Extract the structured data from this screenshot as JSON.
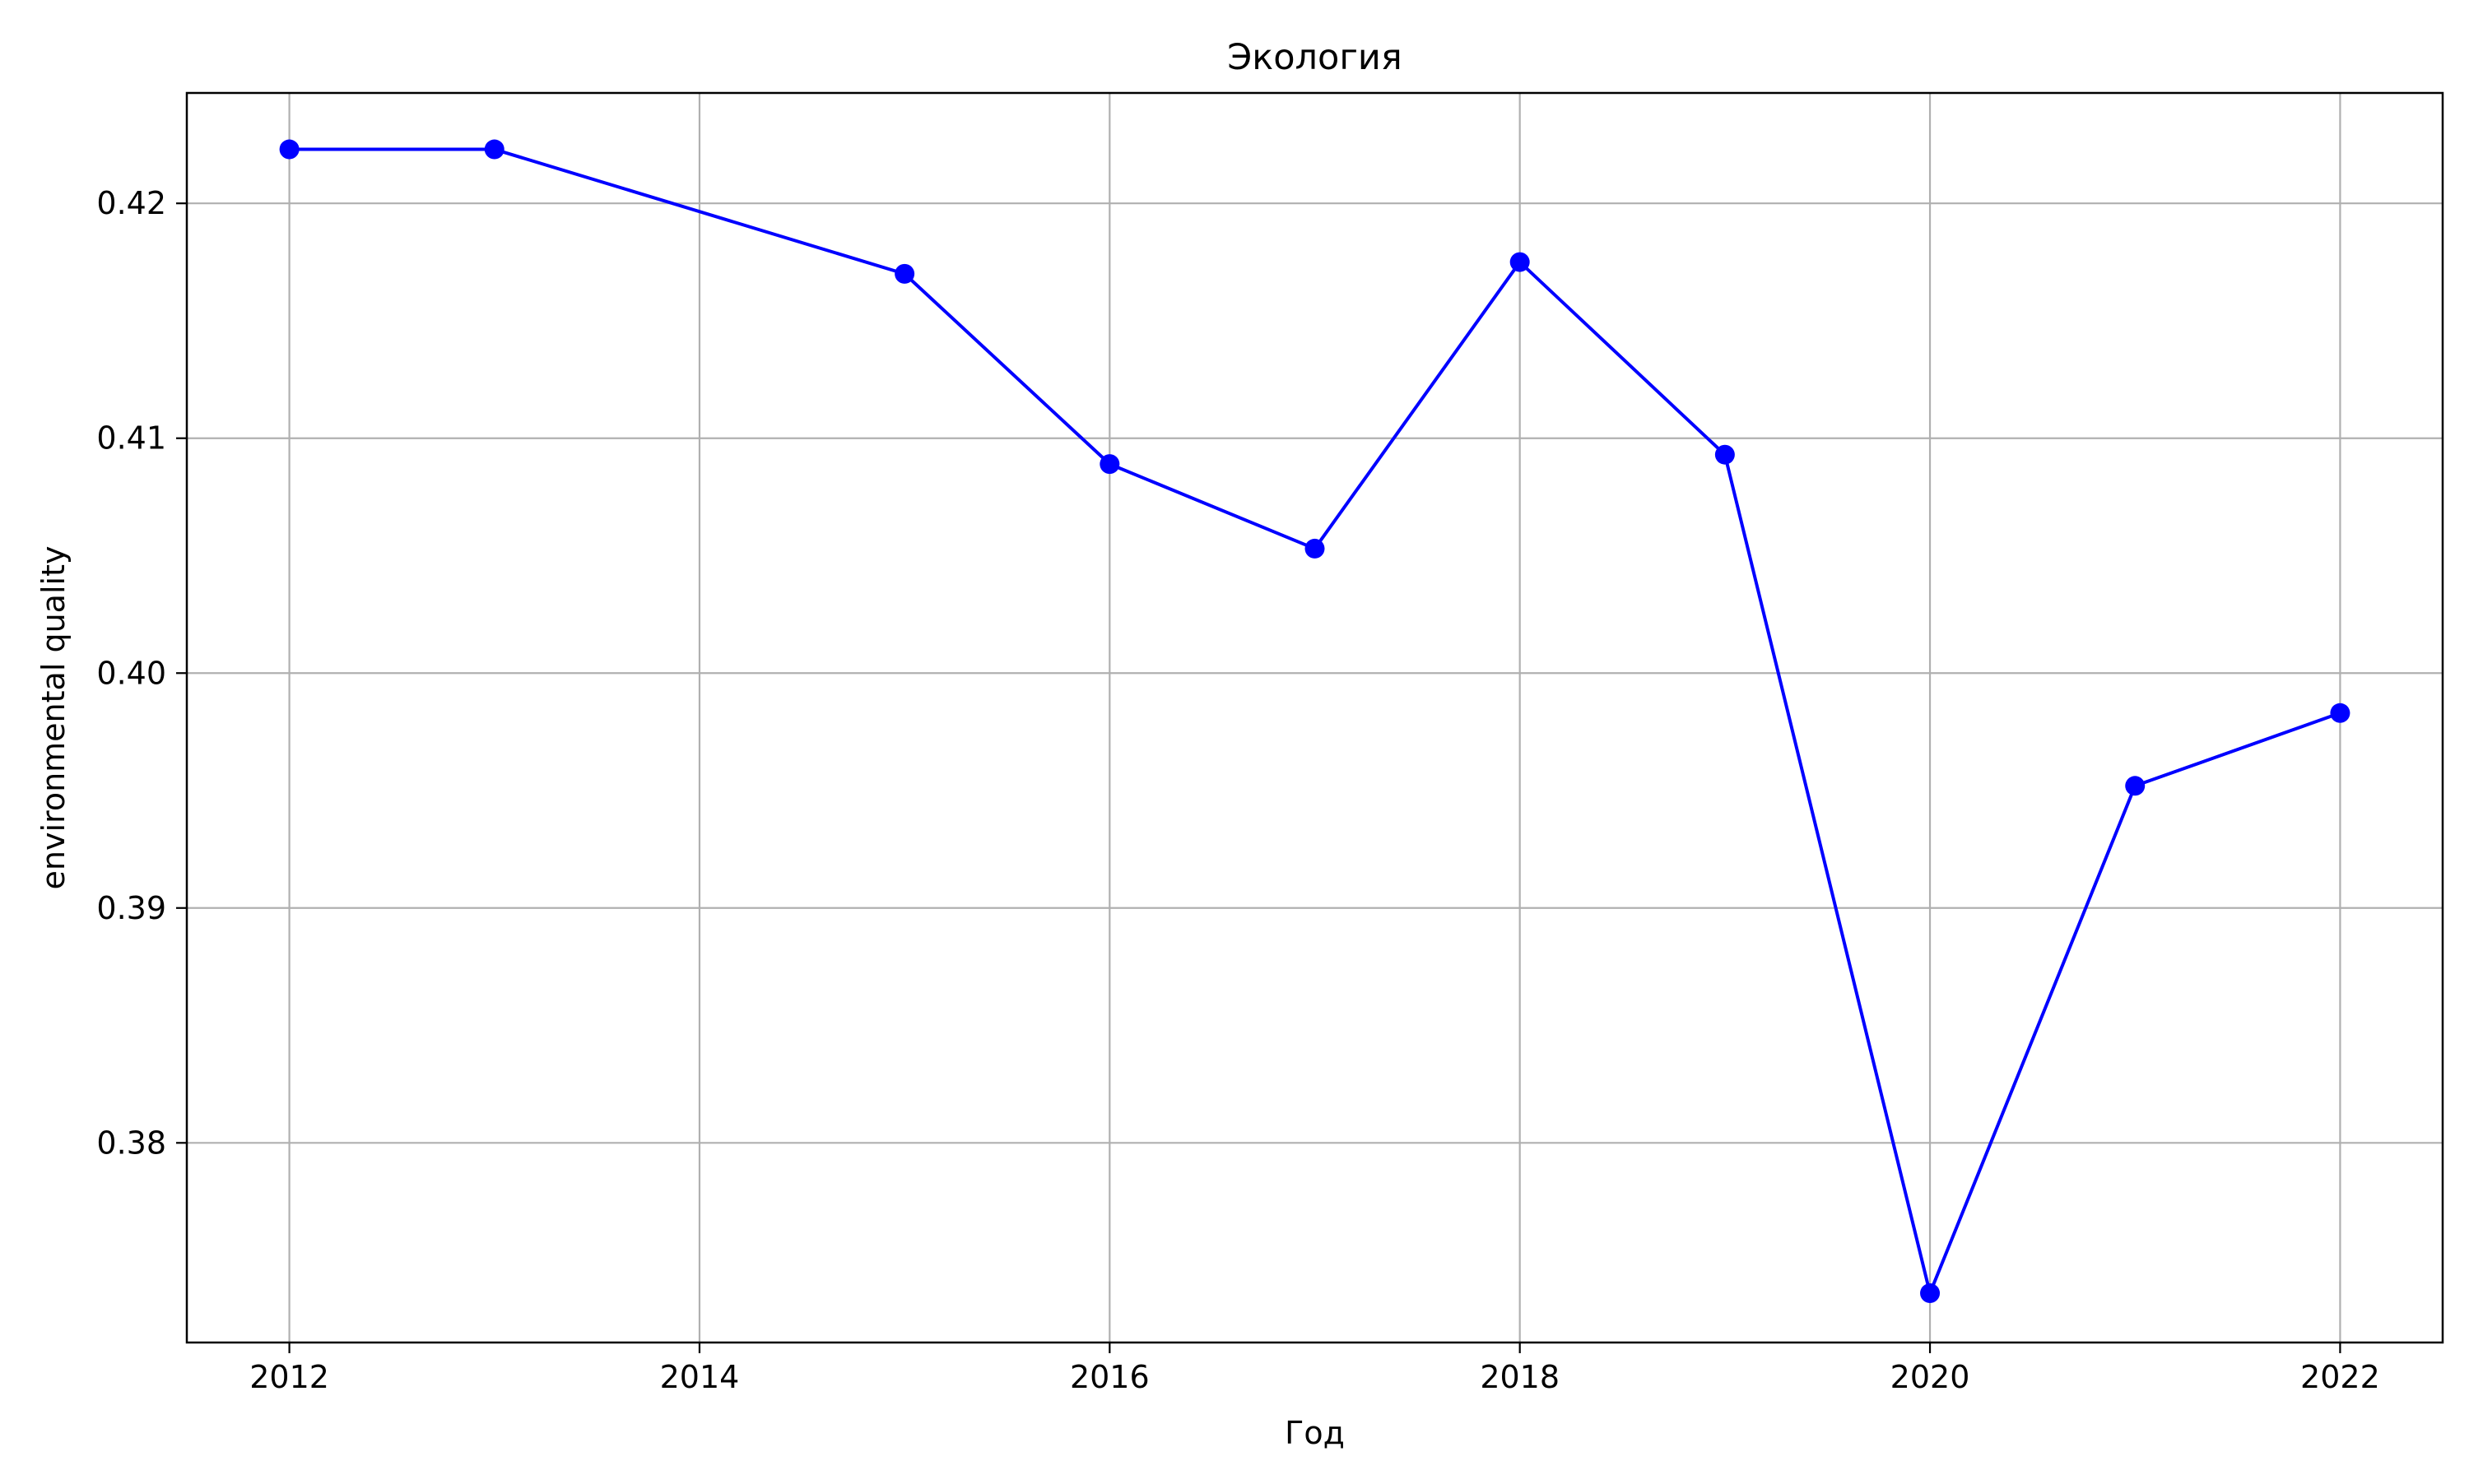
{
  "chart_data": {
    "type": "line",
    "title": "Экология",
    "xlabel": "Год",
    "ylabel": "environmental quality",
    "x": [
      2012,
      2013,
      2015,
      2016,
      2017,
      2018,
      2019,
      2020,
      2021,
      2022
    ],
    "series": [
      {
        "values": [
          0.4223,
          0.4223,
          0.417,
          0.4089,
          0.4053,
          0.4175,
          0.4093,
          0.3736,
          0.3952,
          0.3983
        ],
        "color": "#0000ff",
        "marker": "circle"
      }
    ],
    "xlim": [
      2011.5,
      2022.5
    ],
    "ylim": [
      0.3715,
      0.4247
    ],
    "xticks": [
      2012,
      2014,
      2016,
      2018,
      2020,
      2022
    ],
    "xtick_labels": [
      "2012",
      "2014",
      "2016",
      "2018",
      "2020",
      "2022"
    ],
    "yticks": [
      0.38,
      0.39,
      0.4,
      0.41,
      0.42
    ],
    "ytick_labels": [
      "0.38",
      "0.39",
      "0.40",
      "0.41",
      "0.42"
    ],
    "grid": true,
    "grid_color": "#b0b0b0"
  }
}
